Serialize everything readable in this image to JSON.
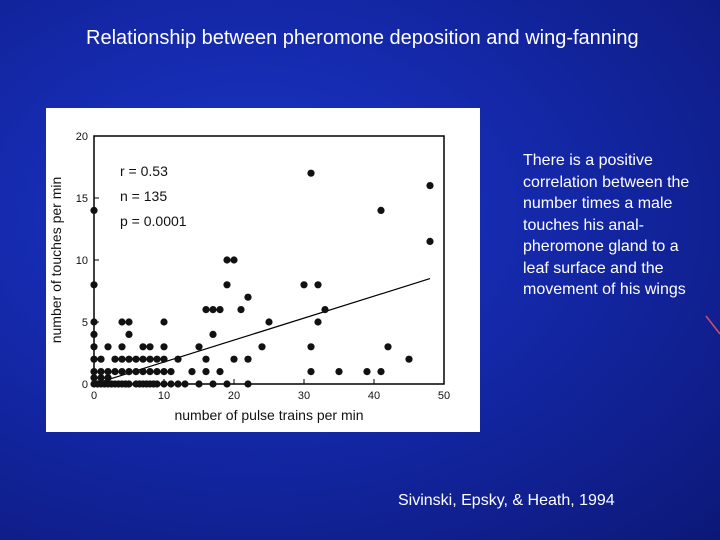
{
  "slide": {
    "title": "Relationship between pheromone deposition and wing-fanning",
    "description": "There is a positive correlation between the number times a male touches his anal-pheromone gland to a leaf surface and the movement of his wings",
    "citation": "Sivinski, Epsky, & Heath, 1994"
  },
  "colors": {
    "background": "#1428a8",
    "text": "#ffffff",
    "decoration": "#d0506a"
  },
  "chart_data": {
    "type": "scatter",
    "xlabel": "number of pulse trains per min",
    "ylabel": "number of touches per min",
    "xlim": [
      0,
      50
    ],
    "ylim": [
      0,
      20
    ],
    "xticks": [
      0,
      10,
      20,
      30,
      40,
      50
    ],
    "yticks": [
      0,
      5,
      10,
      15,
      20
    ],
    "stats": [
      "r = 0.53",
      "n = 135",
      "p = 0.0001"
    ],
    "regression": {
      "x": [
        0,
        48
      ],
      "y": [
        0,
        8.5
      ]
    },
    "series": [
      {
        "points": [
          [
            0,
            14
          ],
          [
            0,
            8
          ],
          [
            0,
            5
          ],
          [
            0,
            4
          ],
          [
            0,
            3
          ],
          [
            0,
            2
          ],
          [
            0,
            1
          ],
          [
            0,
            0.5
          ],
          [
            0,
            0
          ],
          [
            0.5,
            0
          ],
          [
            1,
            0
          ],
          [
            1,
            0.5
          ],
          [
            1,
            1
          ],
          [
            1,
            2
          ],
          [
            1.5,
            0
          ],
          [
            2,
            0
          ],
          [
            2,
            0.5
          ],
          [
            2,
            1
          ],
          [
            2,
            3
          ],
          [
            2.5,
            0
          ],
          [
            3,
            0
          ],
          [
            3,
            1
          ],
          [
            3,
            2
          ],
          [
            3.5,
            0
          ],
          [
            4,
            0
          ],
          [
            4,
            1
          ],
          [
            4,
            2
          ],
          [
            4,
            3
          ],
          [
            4,
            5
          ],
          [
            4.5,
            0
          ],
          [
            5,
            0
          ],
          [
            5,
            1
          ],
          [
            5,
            2
          ],
          [
            5,
            4
          ],
          [
            5,
            5
          ],
          [
            6,
            0
          ],
          [
            6,
            1
          ],
          [
            6,
            2
          ],
          [
            6.5,
            0
          ],
          [
            7,
            0
          ],
          [
            7,
            1
          ],
          [
            7,
            2
          ],
          [
            7,
            3
          ],
          [
            7.5,
            0
          ],
          [
            8,
            0
          ],
          [
            8,
            1
          ],
          [
            8,
            2
          ],
          [
            8,
            3
          ],
          [
            8.5,
            0
          ],
          [
            9,
            0
          ],
          [
            9,
            1
          ],
          [
            9,
            2
          ],
          [
            10,
            0
          ],
          [
            10,
            1
          ],
          [
            10,
            2
          ],
          [
            10,
            3
          ],
          [
            10,
            5
          ],
          [
            11,
            0
          ],
          [
            11,
            1
          ],
          [
            12,
            0
          ],
          [
            12,
            2
          ],
          [
            13,
            0
          ],
          [
            14,
            1
          ],
          [
            15,
            0
          ],
          [
            15,
            3
          ],
          [
            16,
            1
          ],
          [
            16,
            2
          ],
          [
            16,
            6
          ],
          [
            17,
            0
          ],
          [
            17,
            4
          ],
          [
            17,
            6
          ],
          [
            18,
            6
          ],
          [
            18,
            1
          ],
          [
            19,
            8
          ],
          [
            19,
            10
          ],
          [
            19,
            0
          ],
          [
            20,
            10
          ],
          [
            20,
            2
          ],
          [
            21,
            6
          ],
          [
            22,
            0
          ],
          [
            22,
            7
          ],
          [
            22,
            2
          ],
          [
            24,
            3
          ],
          [
            25,
            5
          ],
          [
            30,
            8
          ],
          [
            31,
            17
          ],
          [
            31,
            3
          ],
          [
            31,
            1
          ],
          [
            32,
            8
          ],
          [
            32,
            5
          ],
          [
            33,
            6
          ],
          [
            35,
            1
          ],
          [
            39,
            1
          ],
          [
            41,
            1
          ],
          [
            41,
            14
          ],
          [
            42,
            3
          ],
          [
            45,
            2
          ],
          [
            48,
            16
          ],
          [
            48,
            11.5
          ]
        ]
      }
    ]
  }
}
